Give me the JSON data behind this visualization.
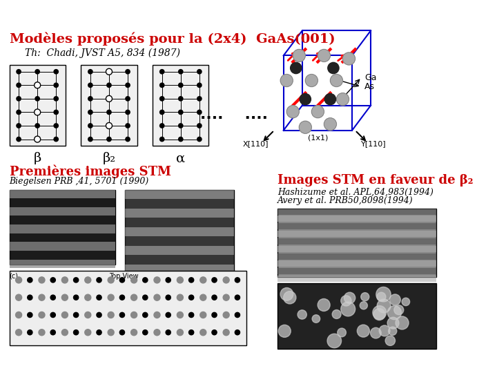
{
  "title": "Modèles proposés pour la (2x4)  GaAs(001)",
  "subtitle": "Th:  Chadi, JVST A5, 834 (1987)",
  "title_color": "#CC0000",
  "subtitle_color": "#000000",
  "beta_label": "β",
  "beta2_label": "β₂",
  "alpha_label": "α",
  "dots_text": "....    ....",
  "stm_title": "Premières images STM",
  "stm_ref": "Biegelsen PRB ,41, 5701 (1990)",
  "stm_title2": "Images STM en faveur de β₂",
  "stm_ref2a": "Hashizume et al. APL,64,983(1994)",
  "stm_ref2b": "Avery et al. PRB50,8098(1994)",
  "ga_label": "Ga",
  "as_label": "As",
  "x110_label": "X[110]",
  "y110_label": "Y[110]",
  "unit_cell_label": "(1x1)",
  "bg_color": "#FFFFFF",
  "red_color": "#CC0000",
  "black_color": "#000000",
  "gray_color": "#888888"
}
